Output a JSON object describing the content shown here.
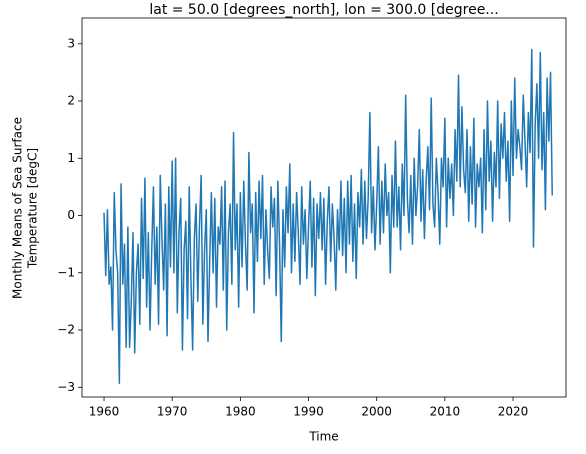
{
  "chart_data": {
    "type": "line",
    "title": "lat = 50.0 [degrees_north], lon = 300.0 [degree...",
    "xlabel": "Time",
    "ylabel": [
      "Monthly Means of Sea Surface",
      "Temperature [degC]"
    ],
    "xlim": [
      1956.77,
      2027.77
    ],
    "ylim": [
      -3.17,
      3.45
    ],
    "xticks": [
      1960,
      1970,
      1980,
      1990,
      2000,
      2010,
      2020
    ],
    "yticks": [
      {
        "value": -3,
        "label": "−3"
      },
      {
        "value": -2,
        "label": "−2"
      },
      {
        "value": -1,
        "label": "−1"
      },
      0,
      1,
      2,
      3
    ],
    "grid": false,
    "x": [
      1960,
      1960.25,
      1960.5,
      1960.75,
      1961,
      1961.25,
      1961.5,
      1961.75,
      1962,
      1962.25,
      1962.5,
      1962.75,
      1963,
      1963.25,
      1963.5,
      1963.75,
      1964,
      1964.25,
      1964.5,
      1964.75,
      1965,
      1965.25,
      1965.5,
      1965.75,
      1966,
      1966.25,
      1966.5,
      1966.75,
      1967,
      1967.25,
      1967.5,
      1967.75,
      1968,
      1968.25,
      1968.5,
      1968.75,
      1969,
      1969.25,
      1969.5,
      1969.75,
      1970,
      1970.25,
      1970.5,
      1970.75,
      1971,
      1971.25,
      1971.5,
      1971.75,
      1972,
      1972.25,
      1972.5,
      1972.75,
      1973,
      1973.25,
      1973.5,
      1973.75,
      1974,
      1974.25,
      1974.5,
      1974.75,
      1975,
      1975.25,
      1975.5,
      1975.75,
      1976,
      1976.25,
      1976.5,
      1976.75,
      1977,
      1977.25,
      1977.5,
      1977.75,
      1978,
      1978.25,
      1978.5,
      1978.75,
      1979,
      1979.25,
      1979.5,
      1979.75,
      1980,
      1980.25,
      1980.5,
      1980.75,
      1981,
      1981.25,
      1981.5,
      1981.75,
      1982,
      1982.25,
      1982.5,
      1982.75,
      1983,
      1983.25,
      1983.5,
      1983.75,
      1984,
      1984.25,
      1984.5,
      1984.75,
      1985,
      1985.25,
      1985.5,
      1985.75,
      1986,
      1986.25,
      1986.5,
      1986.75,
      1987,
      1987.25,
      1987.5,
      1987.75,
      1988,
      1988.25,
      1988.5,
      1988.75,
      1989,
      1989.25,
      1989.5,
      1989.75,
      1990,
      1990.25,
      1990.5,
      1990.75,
      1991,
      1991.25,
      1991.5,
      1991.75,
      1992,
      1992.25,
      1992.5,
      1992.75,
      1993,
      1993.25,
      1993.5,
      1993.75,
      1994,
      1994.25,
      1994.5,
      1994.75,
      1995,
      1995.25,
      1995.5,
      1995.75,
      1996,
      1996.25,
      1996.5,
      1996.75,
      1997,
      1997.25,
      1997.5,
      1997.75,
      1998,
      1998.25,
      1998.5,
      1998.75,
      1999,
      1999.25,
      1999.5,
      1999.75,
      2000,
      2000.25,
      2000.5,
      2000.75,
      2001,
      2001.25,
      2001.5,
      2001.75,
      2002,
      2002.25,
      2002.5,
      2002.75,
      2003,
      2003.25,
      2003.5,
      2003.75,
      2004,
      2004.25,
      2004.5,
      2004.75,
      2005,
      2005.25,
      2005.5,
      2005.75,
      2006,
      2006.25,
      2006.5,
      2006.75,
      2007,
      2007.25,
      2007.5,
      2007.75,
      2008,
      2008.25,
      2008.5,
      2008.75,
      2009,
      2009.25,
      2009.5,
      2009.75,
      2010,
      2010.25,
      2010.5,
      2010.75,
      2011,
      2011.25,
      2011.5,
      2011.75,
      2012,
      2012.25,
      2012.5,
      2012.75,
      2013,
      2013.25,
      2013.5,
      2013.75,
      2014,
      2014.25,
      2014.5,
      2014.75,
      2015,
      2015.25,
      2015.5,
      2015.75,
      2016,
      2016.25,
      2016.5,
      2016.75,
      2017,
      2017.25,
      2017.5,
      2017.75,
      2018,
      2018.25,
      2018.5,
      2018.75,
      2019,
      2019.25,
      2019.5,
      2019.75,
      2020,
      2020.25,
      2020.5,
      2020.75,
      2021,
      2021.25,
      2021.5,
      2021.75,
      2022,
      2022.25,
      2022.5,
      2022.75,
      2023,
      2023.25,
      2023.5,
      2023.75,
      2024,
      2024.25,
      2024.5,
      2024.75,
      2025,
      2025.25,
      2025.5,
      2025.75
    ],
    "series": [
      {
        "color": "#1f77b4",
        "values": [
          0.05,
          -1.05,
          0.1,
          -1.2,
          -0.9,
          -2.0,
          0.4,
          -0.6,
          -1.0,
          -2.93,
          0.55,
          -1.2,
          -0.5,
          -2.3,
          -0.2,
          -2.3,
          -1.5,
          -0.3,
          -2.4,
          -1.0,
          -0.5,
          -1.9,
          0.3,
          -1.1,
          0.65,
          -1.6,
          -0.3,
          -2.0,
          -0.6,
          0.5,
          -1.2,
          -0.2,
          -1.9,
          0.7,
          -0.4,
          -1.3,
          0.2,
          -2.1,
          0.5,
          -0.9,
          0.95,
          -1.0,
          1.0,
          -1.7,
          -0.3,
          0.3,
          -2.35,
          -0.6,
          -0.1,
          -1.8,
          0.5,
          -1.1,
          -2.35,
          -0.4,
          0.2,
          -1.5,
          -0.2,
          0.7,
          -1.9,
          -0.6,
          0.1,
          -2.2,
          -0.8,
          0.4,
          -1.0,
          0.3,
          -1.6,
          -0.2,
          -0.5,
          0.5,
          -1.3,
          0.6,
          -2.0,
          -0.3,
          0.2,
          -1.2,
          1.45,
          -0.6,
          0.2,
          -1.6,
          0.4,
          -0.9,
          0.6,
          -0.5,
          -1.3,
          1.1,
          -0.3,
          0.2,
          -1.7,
          0.4,
          -0.8,
          0.6,
          -0.4,
          0.7,
          -1.2,
          0.1,
          -0.6,
          -1.1,
          0.5,
          -0.2,
          0.3,
          -1.4,
          0.6,
          -0.5,
          -2.2,
          0.1,
          -0.9,
          0.5,
          -0.3,
          0.9,
          -1.0,
          0.2,
          -0.8,
          0.4,
          -0.3,
          -1.2,
          0.5,
          -0.5,
          0.1,
          -1.1,
          -0.2,
          0.6,
          -0.9,
          0.3,
          -1.4,
          0.2,
          -0.4,
          0.4,
          -0.6,
          0.3,
          -1.2,
          -0.1,
          0.5,
          -0.8,
          0.2,
          -0.4,
          -1.3,
          0.1,
          -0.6,
          0.6,
          -0.7,
          0.3,
          -1.0,
          0.6,
          -0.5,
          0.7,
          -0.8,
          0.2,
          -1.1,
          0.4,
          -0.2,
          0.8,
          -0.5,
          0.6,
          -0.4,
          0.3,
          1.8,
          -0.3,
          0.5,
          -0.6,
          0.2,
          1.2,
          -0.5,
          0.6,
          -0.3,
          0.9,
          0.0,
          0.4,
          -1.0,
          0.7,
          -0.2,
          1.3,
          -0.2,
          0.5,
          -0.6,
          0.9,
          0.0,
          2.1,
          0.3,
          -0.3,
          0.7,
          -0.5,
          1.0,
          0.0,
          0.5,
          1.5,
          -0.1,
          0.8,
          -0.4,
          0.6,
          1.2,
          0.1,
          2.05,
          0.2,
          -0.2,
          1.0,
          0.4,
          -0.5,
          1.0,
          0.5,
          1.7,
          -0.2,
          1.0,
          0.3,
          0.9,
          0.0,
          1.5,
          0.6,
          2.45,
          0.5,
          1.9,
          0.8,
          0.4,
          1.5,
          -0.1,
          1.2,
          0.2,
          1.7,
          -0.2,
          0.9,
          0.5,
          1.0,
          -0.3,
          1.5,
          0.1,
          2.0,
          0.6,
          1.3,
          -0.1,
          1.1,
          0.5,
          2.0,
          0.3,
          1.6,
          1.0,
          1.8,
          0.6,
          1.3,
          -0.1,
          2.0,
          0.7,
          2.4,
          1.0,
          1.5,
          1.2,
          0.8,
          2.1,
          1.3,
          0.5,
          1.8,
          1.1,
          2.9,
          -0.55,
          1.6,
          2.3,
          1.0,
          2.85,
          0.8,
          1.8,
          0.1,
          2.4,
          1.3,
          2.5,
          0.35
        ]
      }
    ]
  }
}
